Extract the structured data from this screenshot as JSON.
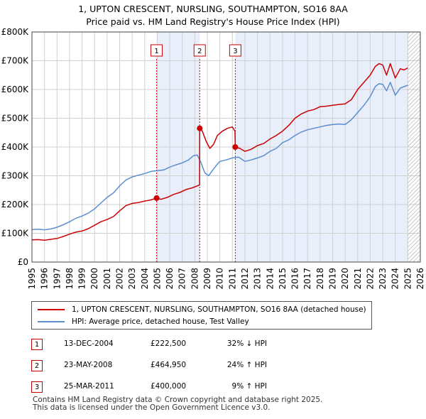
{
  "title": {
    "line1": "1, UPTON CRESCENT, NURSLING, SOUTHAMPTON, SO16 8AA",
    "line2": "Price paid vs. HM Land Registry's House Price Index (HPI)"
  },
  "colors": {
    "property": "#cc0000",
    "hpi": "#5b8fd0",
    "shade": "#e8eefa",
    "grid": "#d0d0d0",
    "marker_border": "#cc0000"
  },
  "chart_data": {
    "type": "line",
    "title": "Price paid vs. HM Land Registry's House Price Index (HPI)",
    "xlim": [
      1995,
      2026
    ],
    "ylim": [
      0,
      800000
    ],
    "y_ticks": [
      0,
      100000,
      200000,
      300000,
      400000,
      500000,
      600000,
      700000,
      800000
    ],
    "y_tick_labels": [
      "£0",
      "£100K",
      "£200K",
      "£300K",
      "£400K",
      "£500K",
      "£600K",
      "£700K",
      "£800K"
    ],
    "x_ticks": [
      1995,
      1996,
      1997,
      1998,
      1999,
      2000,
      2001,
      2002,
      2003,
      2004,
      2005,
      2006,
      2007,
      2008,
      2009,
      2010,
      2011,
      2012,
      2013,
      2014,
      2015,
      2016,
      2017,
      2018,
      2019,
      2020,
      2021,
      2022,
      2023,
      2024,
      2025,
      2026
    ],
    "grid": true,
    "shaded_ranges": [
      [
        2004.95,
        2008.39
      ],
      [
        2011.23,
        2025.0
      ]
    ],
    "future_hatch_from": 2025.0,
    "series": [
      {
        "name": "1, UPTON CRESCENT, NURSLING, SOUTHAMPTON, SO16 8AA (detached house)",
        "color": "#cc0000",
        "x": [
          1995.0,
          1995.5,
          1996.0,
          1996.5,
          1997.0,
          1997.5,
          1998.0,
          1998.5,
          1999.0,
          1999.5,
          2000.0,
          2000.5,
          2001.0,
          2001.5,
          2002.0,
          2002.5,
          2003.0,
          2003.5,
          2004.0,
          2004.5,
          2004.95,
          2005.3,
          2005.8,
          2006.3,
          2006.8,
          2007.3,
          2007.8,
          2008.2,
          2008.38,
          2008.39,
          2008.6,
          2008.9,
          2009.2,
          2009.5,
          2009.8,
          2010.2,
          2010.6,
          2011.0,
          2011.2,
          2011.23,
          2011.6,
          2012.0,
          2012.5,
          2013.0,
          2013.5,
          2014.0,
          2014.5,
          2015.0,
          2015.5,
          2016.0,
          2016.5,
          2017.0,
          2017.5,
          2018.0,
          2018.5,
          2019.0,
          2019.5,
          2020.0,
          2020.5,
          2021.0,
          2021.5,
          2022.0,
          2022.4,
          2022.7,
          2023.0,
          2023.3,
          2023.6,
          2024.0,
          2024.4,
          2024.7,
          2025.0
        ],
        "values": [
          77000,
          78000,
          76000,
          79000,
          82000,
          89000,
          97000,
          104000,
          108000,
          116000,
          128000,
          140000,
          148000,
          158000,
          178000,
          196000,
          204000,
          207000,
          212000,
          216000,
          222500,
          218000,
          225000,
          235000,
          242000,
          252000,
          258000,
          265000,
          268000,
          464950,
          455000,
          420000,
          395000,
          410000,
          440000,
          455000,
          465000,
          470000,
          455000,
          400000,
          395000,
          385000,
          392000,
          405000,
          412000,
          428000,
          440000,
          455000,
          475000,
          500000,
          515000,
          525000,
          530000,
          540000,
          542000,
          545000,
          548000,
          550000,
          565000,
          600000,
          625000,
          650000,
          680000,
          690000,
          685000,
          650000,
          690000,
          640000,
          672000,
          668000,
          675000
        ]
      },
      {
        "name": "HPI: Average price, detached house, Test Valley",
        "color": "#5b8fd0",
        "x": [
          1995.0,
          1995.5,
          1996.0,
          1996.5,
          1997.0,
          1997.5,
          1998.0,
          1998.5,
          1999.0,
          1999.5,
          2000.0,
          2000.5,
          2001.0,
          2001.5,
          2002.0,
          2002.5,
          2003.0,
          2003.5,
          2004.0,
          2004.5,
          2005.0,
          2005.5,
          2006.0,
          2006.5,
          2007.0,
          2007.5,
          2007.9,
          2008.2,
          2008.5,
          2008.8,
          2009.1,
          2009.4,
          2009.7,
          2010.0,
          2010.5,
          2011.0,
          2011.5,
          2012.0,
          2012.5,
          2013.0,
          2013.5,
          2014.0,
          2014.5,
          2015.0,
          2015.5,
          2016.0,
          2016.5,
          2017.0,
          2017.5,
          2018.0,
          2018.5,
          2019.0,
          2019.5,
          2020.0,
          2020.5,
          2021.0,
          2021.5,
          2022.0,
          2022.4,
          2022.7,
          2023.0,
          2023.3,
          2023.6,
          2024.0,
          2024.4,
          2024.7,
          2025.0
        ],
        "values": [
          113000,
          114000,
          112000,
          115000,
          121000,
          130000,
          140000,
          152000,
          160000,
          170000,
          185000,
          205000,
          225000,
          240000,
          265000,
          285000,
          296000,
          302000,
          308000,
          315000,
          318000,
          320000,
          330000,
          338000,
          345000,
          355000,
          370000,
          372000,
          345000,
          310000,
          300000,
          318000,
          335000,
          350000,
          355000,
          362000,
          365000,
          350000,
          355000,
          362000,
          370000,
          385000,
          395000,
          415000,
          425000,
          440000,
          452000,
          460000,
          465000,
          470000,
          475000,
          478000,
          480000,
          478000,
          495000,
          520000,
          545000,
          575000,
          610000,
          620000,
          618000,
          595000,
          625000,
          580000,
          605000,
          610000,
          615000
        ]
      }
    ],
    "sales": [
      {
        "id": "1",
        "x": 2004.95,
        "value": 222500
      },
      {
        "id": "2",
        "x": 2008.39,
        "value": 464950
      },
      {
        "id": "3",
        "x": 2011.23,
        "value": 400000
      }
    ]
  },
  "legend": {
    "property_label": "1, UPTON CRESCENT, NURSLING, SOUTHAMPTON, SO16 8AA (detached house)",
    "hpi_label": "HPI: Average price, detached house, Test Valley"
  },
  "transactions": [
    {
      "num": "1",
      "date": "13-DEC-2004",
      "price": "£222,500",
      "hpi": "32% ↓ HPI"
    },
    {
      "num": "2",
      "date": "23-MAY-2008",
      "price": "£464,950",
      "hpi": "24% ↑ HPI"
    },
    {
      "num": "3",
      "date": "25-MAR-2011",
      "price": "£400,000",
      "hpi": "9% ↑ HPI"
    }
  ],
  "footer": {
    "line1": "Contains HM Land Registry data © Crown copyright and database right 2025.",
    "line2": "This data is licensed under the Open Government Licence v3.0."
  }
}
